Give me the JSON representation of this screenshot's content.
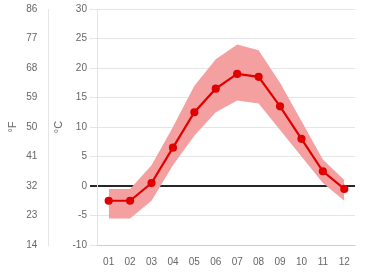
{
  "chart_data": {
    "type": "line",
    "categories": [
      "01",
      "02",
      "03",
      "04",
      "05",
      "06",
      "07",
      "08",
      "09",
      "10",
      "11",
      "12"
    ],
    "series": [
      {
        "values": [
          -2.5,
          -2.5,
          0.5,
          6.5,
          12.5,
          16.5,
          19.0,
          18.5,
          13.5,
          8.0,
          2.5,
          -0.5
        ],
        "color": "#e00000",
        "marker": "circle"
      }
    ],
    "band": {
      "lower": [
        -5.5,
        -5.5,
        -2.5,
        3.5,
        8.5,
        12.5,
        14.5,
        14.0,
        9.5,
        5.0,
        0.5,
        -2.5
      ],
      "upper": [
        -0.5,
        -0.5,
        3.5,
        10.0,
        17.0,
        21.5,
        24.0,
        23.0,
        17.5,
        11.0,
        4.5,
        1.0
      ],
      "color": "#f5a0a0"
    },
    "ylabel": "°C",
    "y2label": "°F",
    "ylim": [
      -10,
      30
    ],
    "yticks": [
      -10,
      -5,
      0,
      5,
      10,
      15,
      20,
      25,
      30
    ],
    "y2lim": [
      14,
      86
    ],
    "y2ticks": [
      14,
      23,
      32,
      41,
      50,
      59,
      68,
      77,
      86
    ],
    "grid": true
  }
}
